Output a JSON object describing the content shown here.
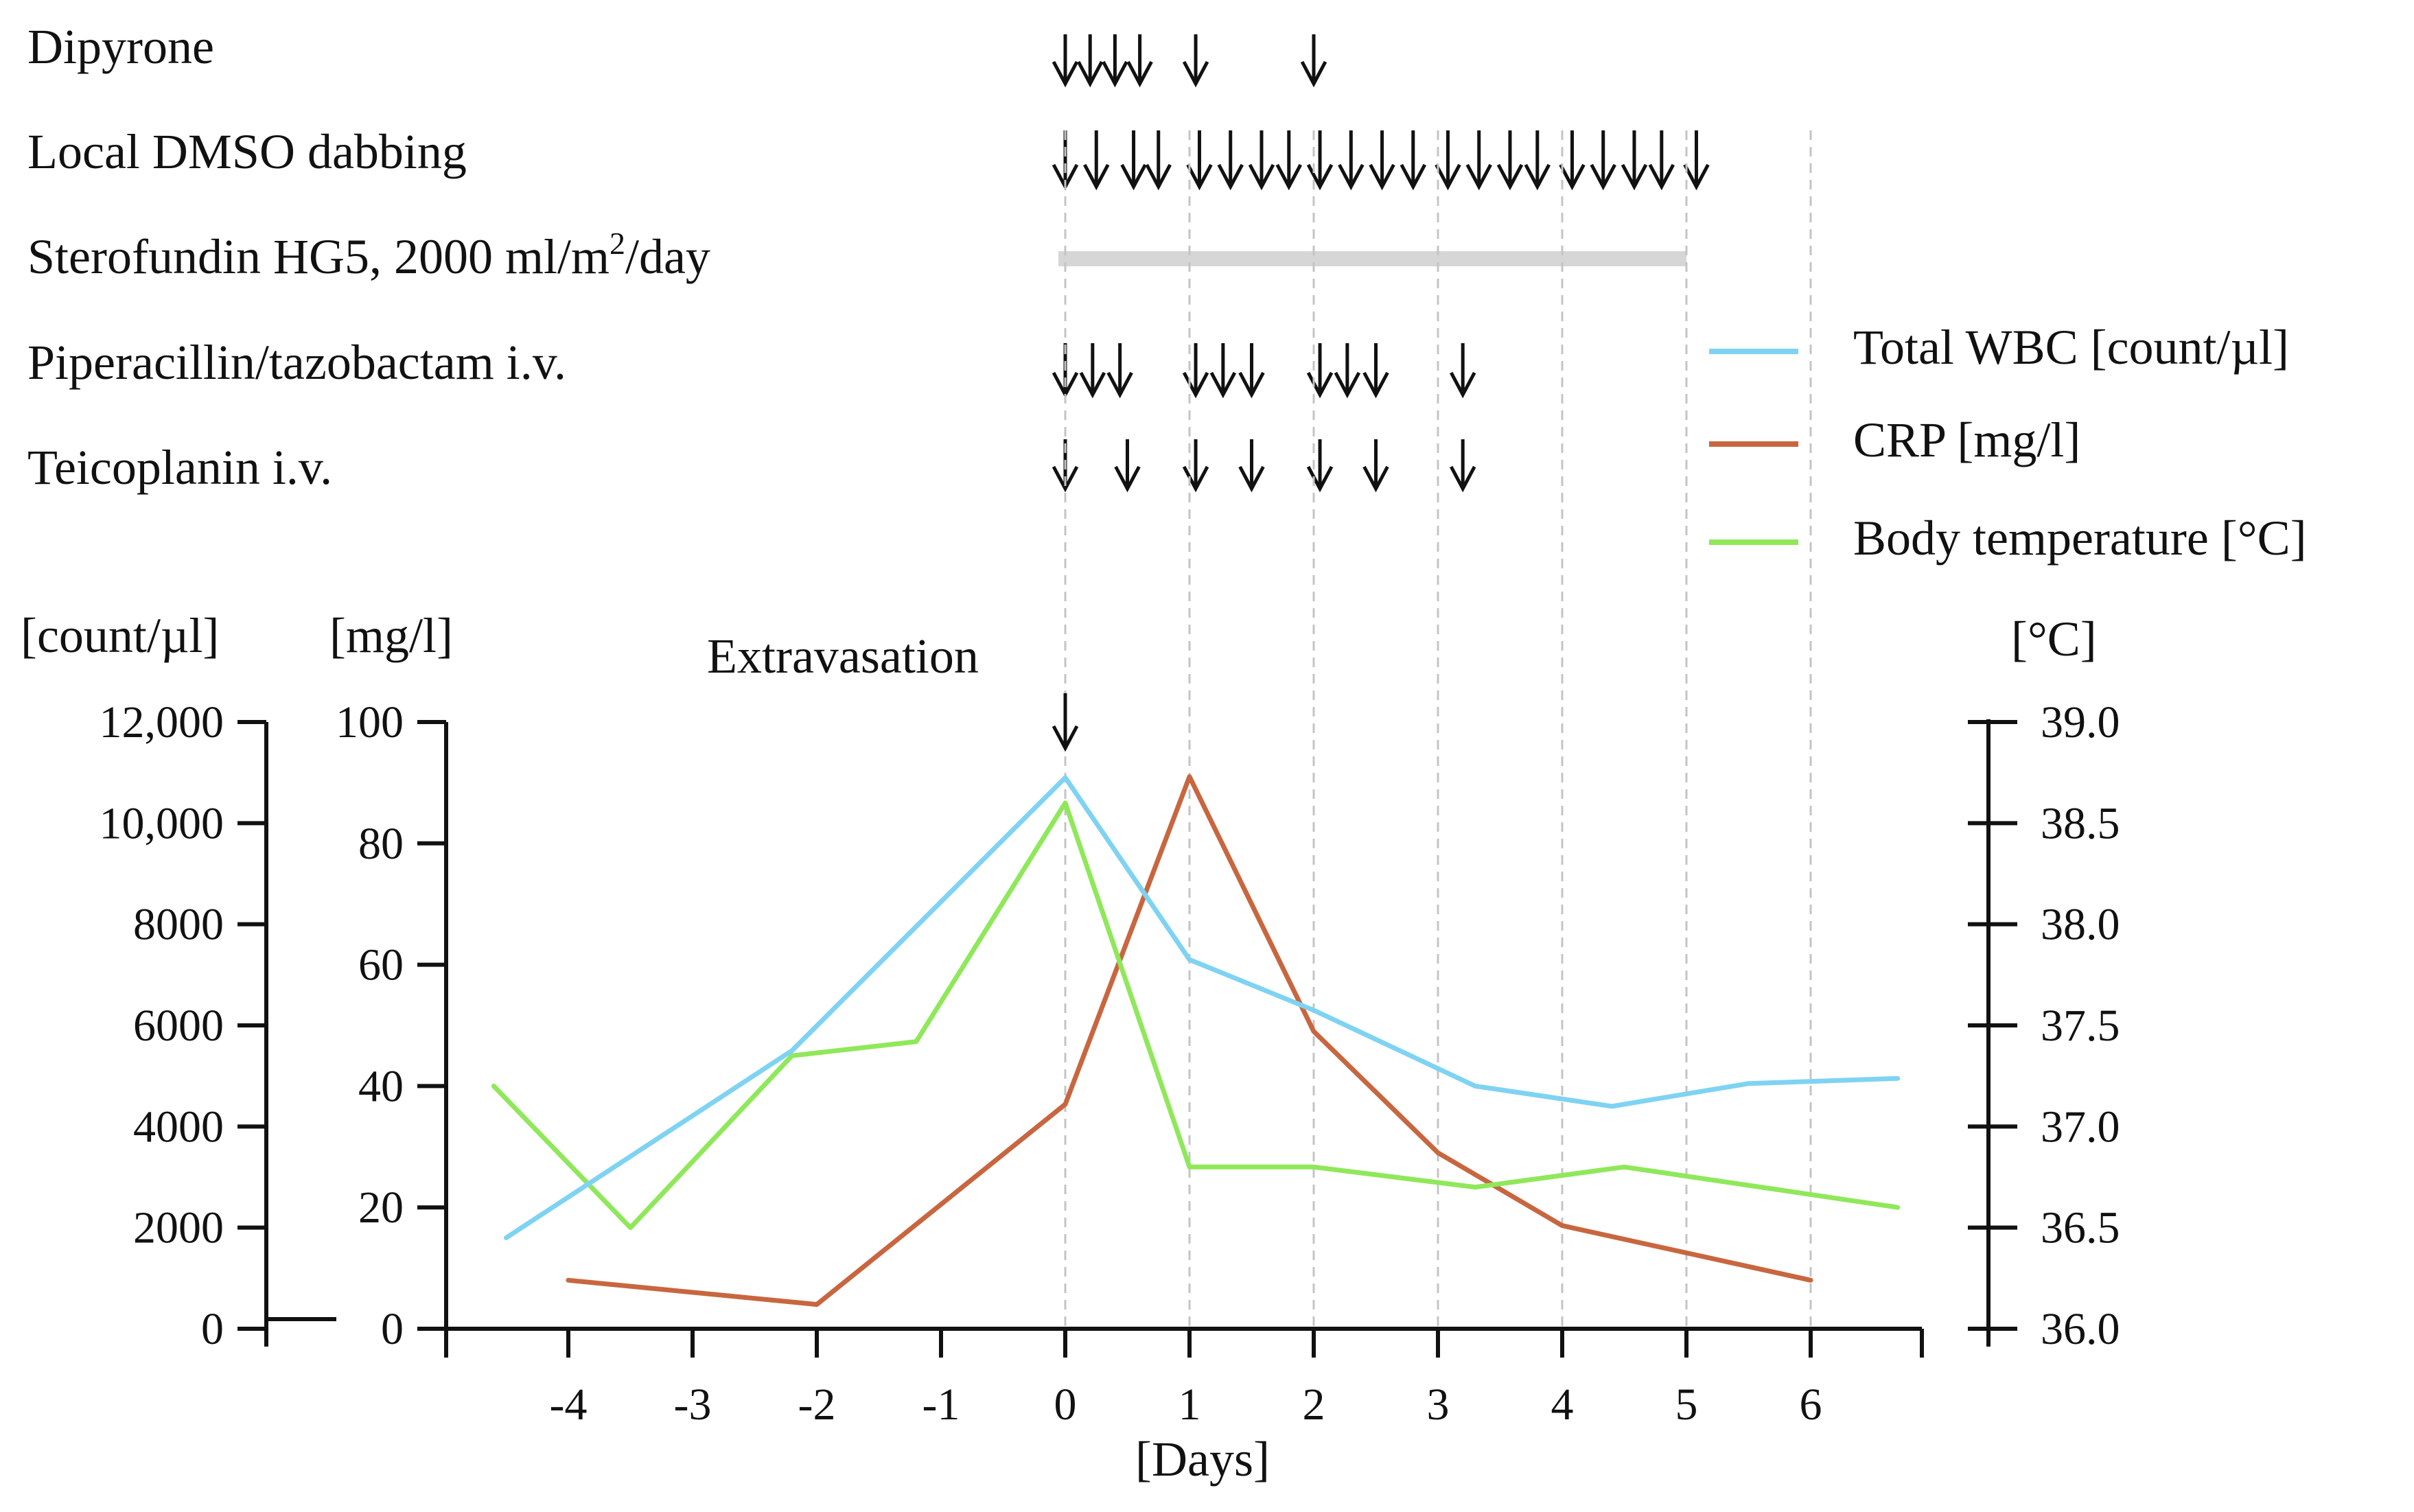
{
  "chart_data": {
    "type": "line",
    "xlabel": "[Days]",
    "x_range": [
      -4.6,
      6.8
    ],
    "x_ticks": [
      -4,
      -3,
      -2,
      -1,
      0,
      1,
      2,
      3,
      4,
      5,
      6
    ],
    "vertical_gridlines_at_days": [
      0,
      1,
      2,
      3,
      4,
      5,
      6
    ],
    "event_annotation": {
      "label": "Extravasation",
      "day": 0
    },
    "axes": {
      "wbc": {
        "title": "[count/µl]",
        "range": [
          0,
          12000
        ],
        "ticks": [
          0,
          2000,
          4000,
          6000,
          8000,
          10000,
          12000
        ],
        "tick_labels": [
          "0",
          "2000",
          "4000",
          "6000",
          "8000",
          "10,000",
          "12,000"
        ]
      },
      "crp": {
        "title": "[mg/l]",
        "range": [
          0,
          100
        ],
        "ticks": [
          0,
          20,
          40,
          60,
          80,
          100
        ],
        "tick_labels": [
          "0",
          "20",
          "40",
          "60",
          "80",
          "100"
        ]
      },
      "temp": {
        "title": "[°C]",
        "range": [
          36.0,
          39.0
        ],
        "ticks": [
          36.0,
          36.5,
          37.0,
          37.5,
          38.0,
          38.5,
          39.0
        ],
        "tick_labels": [
          "36.0",
          "36.5",
          "37.0",
          "37.5",
          "38.0",
          "38.5",
          "39.0"
        ]
      }
    },
    "series": [
      {
        "key": "wbc",
        "name": "Total WBC [count/µl]",
        "color": "#7fd3f2",
        "axis": "wbc",
        "points": [
          [
            -4.5,
            1800
          ],
          [
            -2.2,
            5500
          ],
          [
            0,
            10900
          ],
          [
            1.0,
            7300
          ],
          [
            2.0,
            6300
          ],
          [
            3.3,
            4800
          ],
          [
            4.4,
            4400
          ],
          [
            5.5,
            4850
          ],
          [
            6.7,
            4950
          ]
        ]
      },
      {
        "key": "crp",
        "name": "CRP [mg/l]",
        "color": "#c8663f",
        "axis": "crp",
        "points": [
          [
            -4.0,
            8
          ],
          [
            -2.0,
            4
          ],
          [
            0,
            37
          ],
          [
            1.0,
            91
          ],
          [
            2.0,
            49
          ],
          [
            3.0,
            29
          ],
          [
            4.0,
            17
          ],
          [
            6.0,
            8
          ]
        ]
      },
      {
        "key": "temp",
        "name": "Body temperature [°C]",
        "color": "#8fe85a",
        "axis": "temp",
        "points": [
          [
            -4.6,
            37.2
          ],
          [
            -3.5,
            36.5
          ],
          [
            -2.2,
            37.35
          ],
          [
            -1.2,
            37.42
          ],
          [
            0,
            38.6
          ],
          [
            1.0,
            36.8
          ],
          [
            2.0,
            36.8
          ],
          [
            3.3,
            36.7
          ],
          [
            4.5,
            36.8
          ],
          [
            6.7,
            36.6
          ]
        ]
      }
    ],
    "treatments": [
      {
        "key": "dipyrone",
        "label": "Dipyrone",
        "type": "doses",
        "days": [
          0,
          0.2,
          0.4,
          0.6,
          1.05,
          2.0
        ]
      },
      {
        "key": "dmso",
        "label": "Local DMSO dabbing",
        "type": "doses",
        "days": [
          0,
          0.25,
          0.55,
          0.75,
          1.08,
          1.33,
          1.58,
          1.8,
          2.05,
          2.3,
          2.55,
          2.8,
          3.08,
          3.33,
          3.58,
          3.8,
          4.08,
          4.33,
          4.58,
          4.8,
          5.08
        ]
      },
      {
        "key": "sterofundin",
        "label": "Sterofundin HG5, 2000 ml/m²/day",
        "label_main": "Sterofundin HG5, 2000 ml/m",
        "label_sup": "2",
        "label_tail": "/day",
        "type": "bar",
        "start_day": 0,
        "end_day": 5.0,
        "bar_color": "#d6d6d6"
      },
      {
        "key": "piperacillin",
        "label": "Piperacillin/tazobactam i.v.",
        "type": "doses",
        "days": [
          0,
          0.22,
          0.44,
          1.05,
          1.27,
          1.5,
          2.05,
          2.27,
          2.5,
          3.2
        ]
      },
      {
        "key": "teicoplanin",
        "label": "Teicoplanin i.v.",
        "type": "doses",
        "days": [
          0,
          0.5,
          1.05,
          1.5,
          2.05,
          2.5,
          3.2
        ]
      }
    ]
  }
}
